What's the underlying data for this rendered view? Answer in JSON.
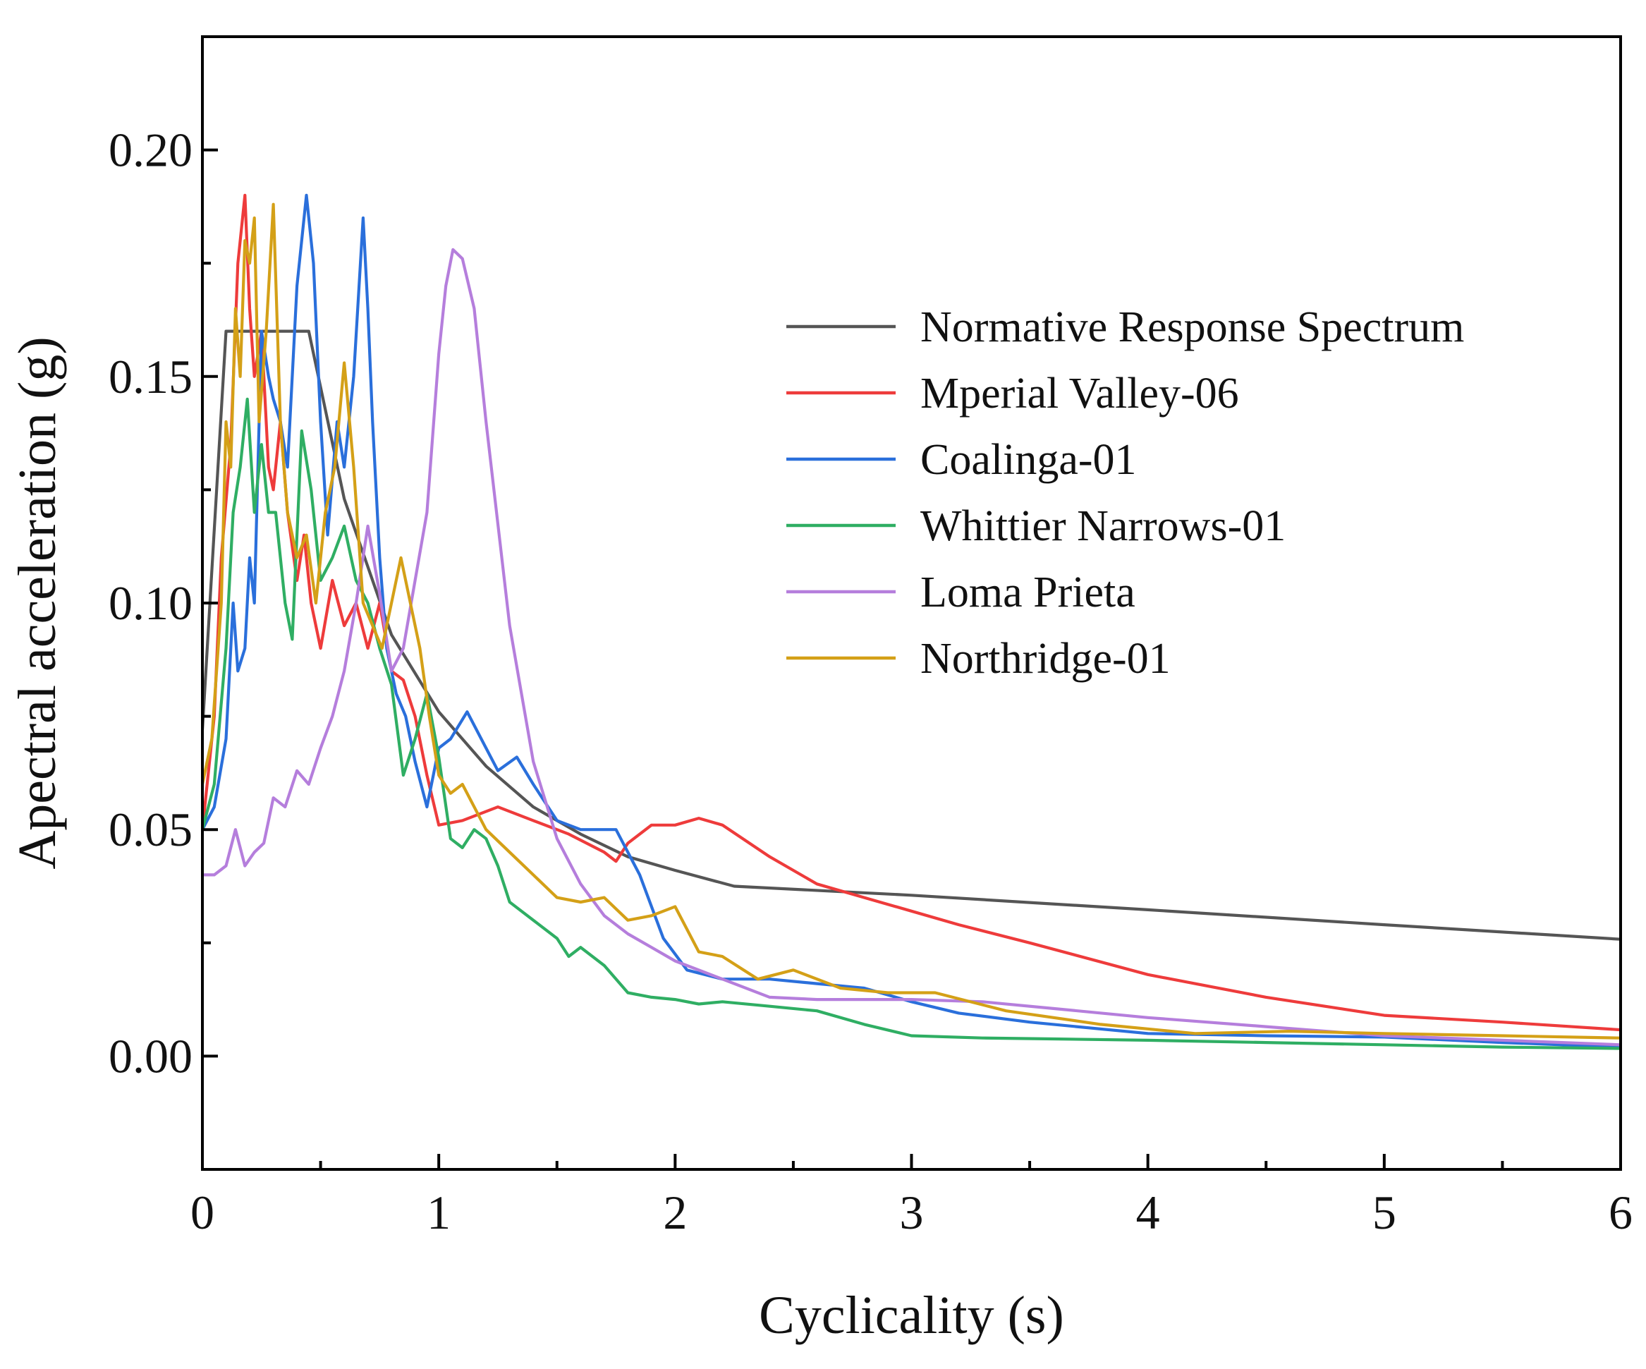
{
  "chart_data": {
    "type": "line",
    "title": "",
    "xlabel": "Cyclicality (s)",
    "ylabel": "Apectral acceleration (g)",
    "xlim": [
      0,
      6
    ],
    "ylim": [
      -0.025,
      0.225
    ],
    "xticks": [
      0,
      1,
      2,
      3,
      4,
      5,
      6
    ],
    "xtick_labels": [
      "0",
      "1",
      "2",
      "3",
      "4",
      "5",
      "6"
    ],
    "yticks": [
      0.0,
      0.05,
      0.1,
      0.15,
      0.2
    ],
    "ytick_labels": [
      "0.00",
      "0.05",
      "0.10",
      "0.15",
      "0.20"
    ],
    "grid": false,
    "legend_position": "top-right",
    "series": [
      {
        "name": "Normative Response Spectrum",
        "color": "#555555",
        "x": [
          0,
          0.1,
          0.45,
          0.6,
          0.8,
          1.0,
          1.2,
          1.4,
          1.6,
          1.8,
          2.0,
          2.25,
          3,
          4,
          5,
          6
        ],
        "y": [
          0.072,
          0.16,
          0.16,
          0.123,
          0.093,
          0.076,
          0.064,
          0.055,
          0.049,
          0.044,
          0.041,
          0.0375,
          0.0355,
          0.0323,
          0.029,
          0.0258
        ]
      },
      {
        "name": "Mperial Valley-06",
        "color": "#ee3b3b",
        "x": [
          0,
          0.05,
          0.08,
          0.12,
          0.15,
          0.18,
          0.2,
          0.22,
          0.25,
          0.28,
          0.3,
          0.33,
          0.36,
          0.4,
          0.43,
          0.46,
          0.5,
          0.55,
          0.6,
          0.65,
          0.7,
          0.75,
          0.8,
          0.85,
          0.9,
          0.95,
          1.0,
          1.1,
          1.25,
          1.4,
          1.55,
          1.7,
          1.75,
          1.8,
          1.9,
          2.0,
          2.1,
          2.2,
          2.4,
          2.6,
          2.8,
          3.0,
          3.2,
          3.5,
          4.0,
          4.5,
          5.0,
          5.5,
          6.0
        ],
        "y": [
          0.05,
          0.075,
          0.11,
          0.135,
          0.175,
          0.19,
          0.165,
          0.15,
          0.16,
          0.13,
          0.125,
          0.14,
          0.12,
          0.105,
          0.115,
          0.1,
          0.09,
          0.105,
          0.095,
          0.1,
          0.09,
          0.1,
          0.085,
          0.083,
          0.075,
          0.062,
          0.051,
          0.052,
          0.055,
          0.052,
          0.049,
          0.045,
          0.043,
          0.047,
          0.051,
          0.051,
          0.0525,
          0.051,
          0.044,
          0.038,
          0.035,
          0.032,
          0.029,
          0.025,
          0.018,
          0.013,
          0.009,
          0.0075,
          0.0058
        ]
      },
      {
        "name": "Coalinga-01",
        "color": "#2a6fdb",
        "x": [
          0,
          0.05,
          0.1,
          0.13,
          0.15,
          0.18,
          0.2,
          0.22,
          0.25,
          0.28,
          0.3,
          0.33,
          0.36,
          0.4,
          0.44,
          0.47,
          0.5,
          0.53,
          0.57,
          0.6,
          0.64,
          0.68,
          0.7,
          0.72,
          0.75,
          0.78,
          0.82,
          0.86,
          0.9,
          0.95,
          1.0,
          1.05,
          1.12,
          1.2,
          1.25,
          1.33,
          1.4,
          1.5,
          1.6,
          1.75,
          1.85,
          1.95,
          2.05,
          2.2,
          2.4,
          2.6,
          2.8,
          3.0,
          3.2,
          3.5,
          4.0,
          4.5,
          5.0,
          5.5,
          6.0
        ],
        "y": [
          0.05,
          0.055,
          0.07,
          0.1,
          0.085,
          0.09,
          0.11,
          0.1,
          0.16,
          0.15,
          0.145,
          0.14,
          0.13,
          0.17,
          0.19,
          0.175,
          0.14,
          0.115,
          0.14,
          0.13,
          0.15,
          0.185,
          0.165,
          0.14,
          0.11,
          0.09,
          0.08,
          0.075,
          0.065,
          0.055,
          0.068,
          0.07,
          0.076,
          0.068,
          0.063,
          0.066,
          0.06,
          0.052,
          0.05,
          0.05,
          0.04,
          0.026,
          0.019,
          0.017,
          0.017,
          0.016,
          0.015,
          0.012,
          0.0095,
          0.0075,
          0.005,
          0.0045,
          0.0042,
          0.003,
          0.002
        ]
      },
      {
        "name": "Whittier Narrows-01",
        "color": "#2fae63",
        "x": [
          0,
          0.05,
          0.1,
          0.13,
          0.16,
          0.19,
          0.22,
          0.25,
          0.28,
          0.31,
          0.35,
          0.38,
          0.42,
          0.46,
          0.5,
          0.55,
          0.6,
          0.65,
          0.7,
          0.75,
          0.8,
          0.85,
          0.9,
          0.95,
          1.0,
          1.05,
          1.1,
          1.15,
          1.2,
          1.25,
          1.3,
          1.4,
          1.5,
          1.55,
          1.6,
          1.7,
          1.8,
          1.9,
          2.0,
          2.1,
          2.2,
          2.4,
          2.6,
          2.8,
          3.0,
          3.3,
          3.6,
          4.0,
          4.5,
          5.0,
          5.5,
          6.0
        ],
        "y": [
          0.05,
          0.06,
          0.09,
          0.12,
          0.13,
          0.145,
          0.12,
          0.135,
          0.12,
          0.12,
          0.1,
          0.092,
          0.138,
          0.125,
          0.105,
          0.11,
          0.117,
          0.105,
          0.1,
          0.09,
          0.082,
          0.062,
          0.07,
          0.08,
          0.066,
          0.048,
          0.046,
          0.05,
          0.048,
          0.042,
          0.034,
          0.03,
          0.026,
          0.022,
          0.024,
          0.02,
          0.014,
          0.013,
          0.0125,
          0.0115,
          0.012,
          0.011,
          0.01,
          0.007,
          0.0045,
          0.004,
          0.0038,
          0.0035,
          0.003,
          0.0025,
          0.002,
          0.0017
        ]
      },
      {
        "name": "Loma Prieta",
        "color": "#b57edc",
        "x": [
          0,
          0.05,
          0.1,
          0.14,
          0.18,
          0.22,
          0.26,
          0.3,
          0.35,
          0.4,
          0.45,
          0.5,
          0.55,
          0.6,
          0.65,
          0.7,
          0.75,
          0.8,
          0.85,
          0.9,
          0.95,
          1.0,
          1.03,
          1.06,
          1.1,
          1.15,
          1.2,
          1.3,
          1.4,
          1.5,
          1.6,
          1.7,
          1.8,
          1.9,
          2.0,
          2.2,
          2.4,
          2.6,
          2.8,
          3.0,
          3.3,
          3.6,
          4.0,
          4.5,
          5.0,
          5.5,
          6.0
        ],
        "y": [
          0.04,
          0.04,
          0.042,
          0.05,
          0.042,
          0.045,
          0.047,
          0.057,
          0.055,
          0.063,
          0.06,
          0.068,
          0.075,
          0.085,
          0.1,
          0.117,
          0.102,
          0.085,
          0.09,
          0.105,
          0.12,
          0.155,
          0.17,
          0.178,
          0.176,
          0.165,
          0.14,
          0.095,
          0.065,
          0.048,
          0.038,
          0.031,
          0.027,
          0.024,
          0.021,
          0.017,
          0.013,
          0.0125,
          0.0125,
          0.0125,
          0.012,
          0.0105,
          0.0085,
          0.0065,
          0.0045,
          0.0035,
          0.0025
        ]
      },
      {
        "name": "Northridge-01",
        "color": "#d4a017",
        "x": [
          0,
          0.04,
          0.08,
          0.1,
          0.12,
          0.14,
          0.16,
          0.18,
          0.2,
          0.22,
          0.24,
          0.27,
          0.3,
          0.33,
          0.36,
          0.4,
          0.44,
          0.48,
          0.52,
          0.56,
          0.6,
          0.64,
          0.68,
          0.72,
          0.76,
          0.8,
          0.84,
          0.88,
          0.92,
          0.96,
          1.0,
          1.05,
          1.1,
          1.2,
          1.3,
          1.4,
          1.5,
          1.6,
          1.7,
          1.8,
          1.9,
          2.0,
          2.1,
          2.2,
          2.35,
          2.5,
          2.7,
          2.9,
          3.1,
          3.4,
          3.8,
          4.2,
          4.6,
          5.0,
          5.5,
          6.0
        ],
        "y": [
          0.06,
          0.07,
          0.1,
          0.14,
          0.13,
          0.165,
          0.15,
          0.18,
          0.175,
          0.185,
          0.14,
          0.16,
          0.188,
          0.14,
          0.12,
          0.11,
          0.115,
          0.1,
          0.12,
          0.13,
          0.153,
          0.13,
          0.1,
          0.095,
          0.09,
          0.1,
          0.11,
          0.1,
          0.09,
          0.075,
          0.062,
          0.058,
          0.06,
          0.05,
          0.045,
          0.04,
          0.035,
          0.034,
          0.035,
          0.03,
          0.031,
          0.033,
          0.023,
          0.022,
          0.017,
          0.019,
          0.015,
          0.014,
          0.014,
          0.01,
          0.007,
          0.005,
          0.0055,
          0.005,
          0.0045,
          0.004
        ]
      }
    ]
  }
}
